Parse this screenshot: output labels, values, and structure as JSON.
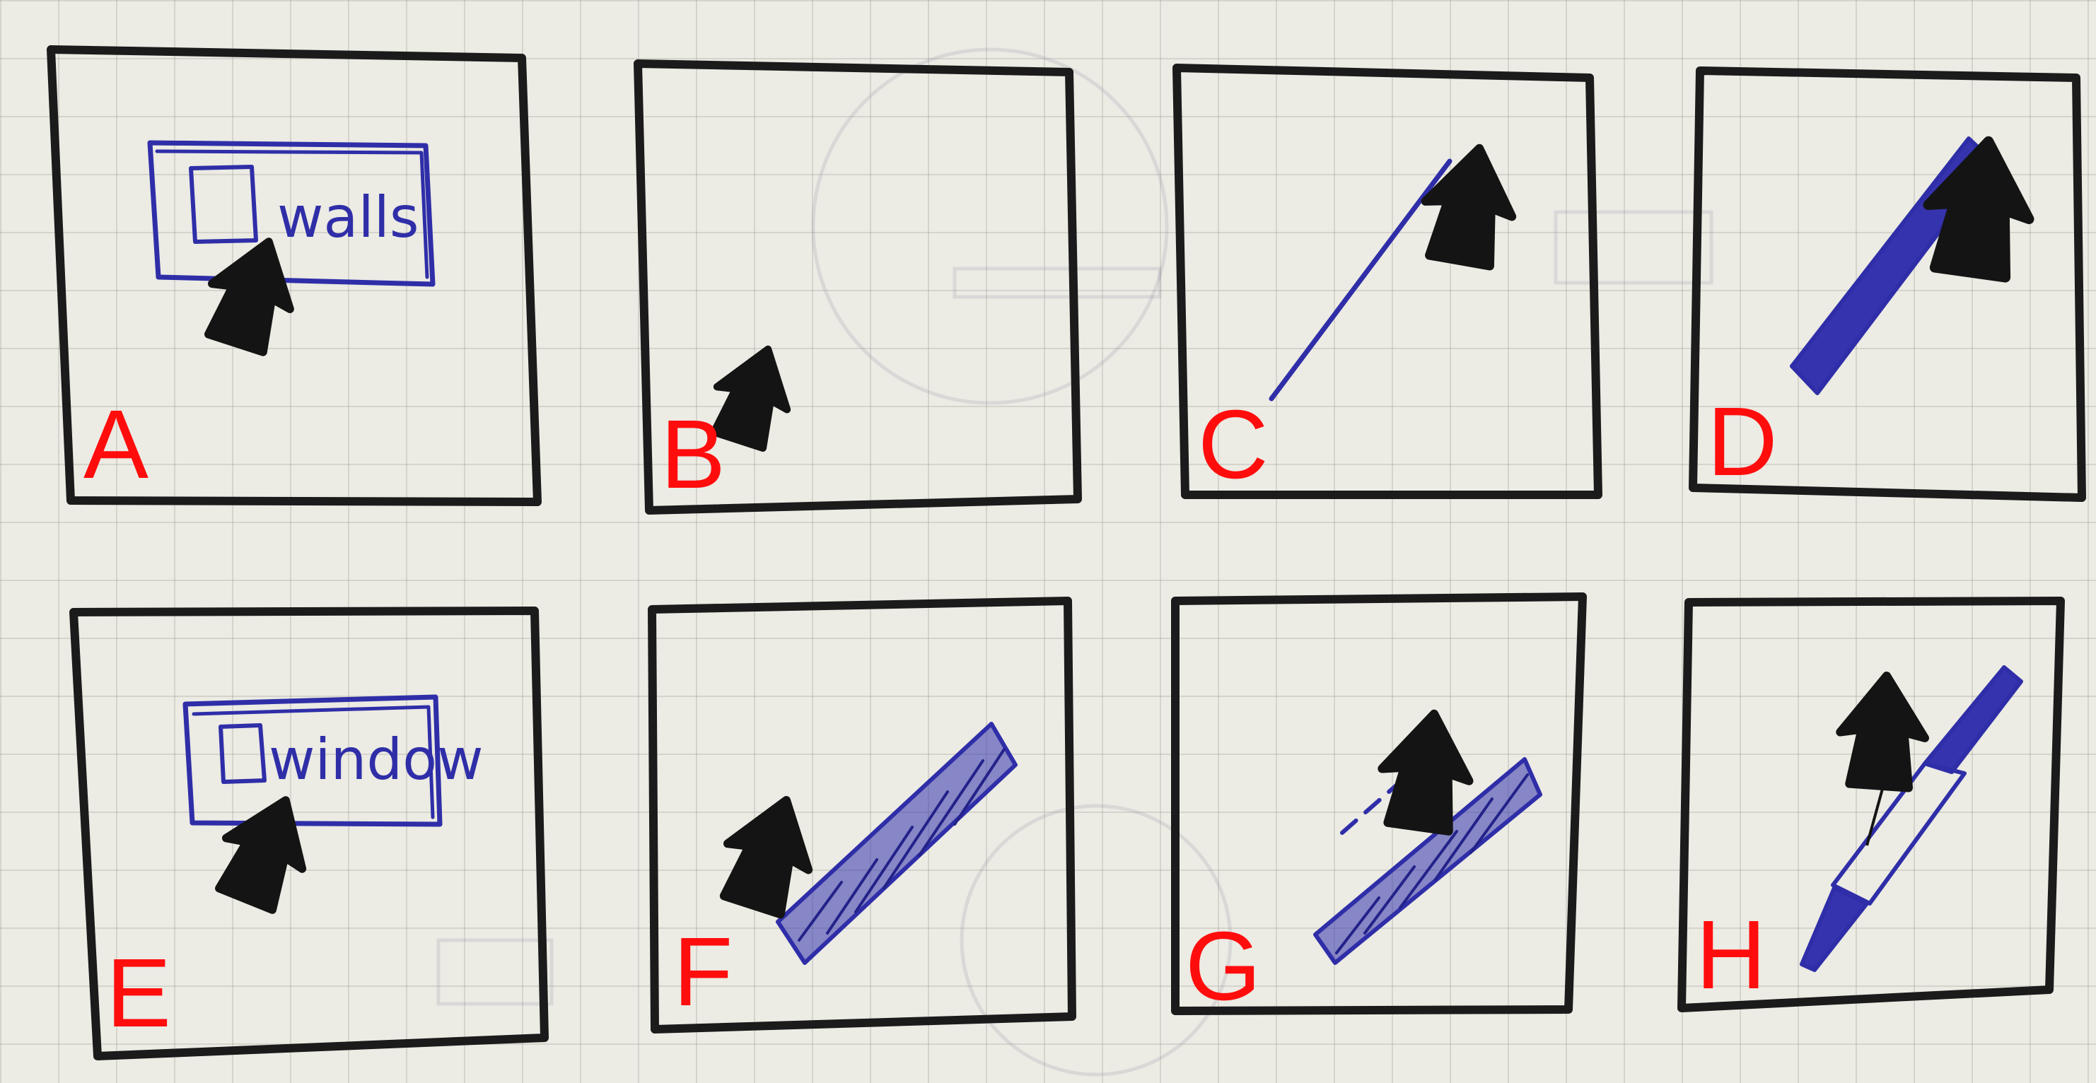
{
  "panels": [
    {
      "id": "A",
      "letter": "A",
      "menu_label": "walls"
    },
    {
      "id": "B",
      "letter": "B"
    },
    {
      "id": "C",
      "letter": "C"
    },
    {
      "id": "D",
      "letter": "D"
    },
    {
      "id": "E",
      "letter": "E",
      "menu_label": "window"
    },
    {
      "id": "F",
      "letter": "F"
    },
    {
      "id": "G",
      "letter": "G"
    },
    {
      "id": "H",
      "letter": "H"
    }
  ],
  "colors": {
    "frame": "#1b1b1b",
    "ink": "#2f2ea8",
    "cursor": "#141414",
    "letter": "#ff0d0d",
    "paper": "#ecebe4"
  }
}
